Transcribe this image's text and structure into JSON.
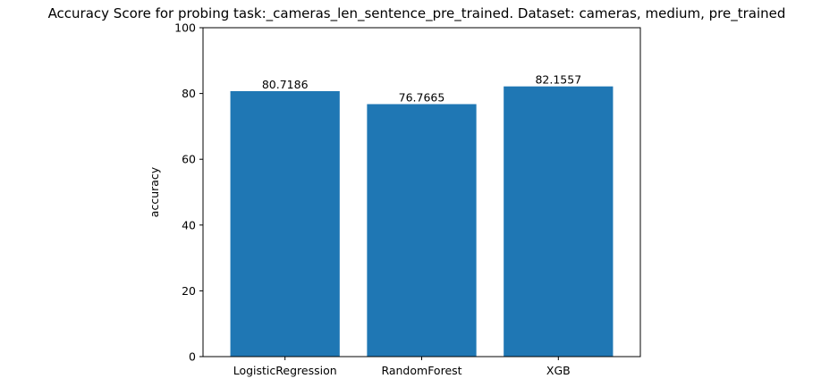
{
  "chart_data": {
    "type": "bar",
    "title": "Accuracy Score for probing task:_cameras_len_sentence_pre_trained. Dataset: cameras, medium, pre_trained",
    "xlabel": "",
    "ylabel": "accuracy",
    "categories": [
      "LogisticRegression",
      "RandomForest",
      "XGB"
    ],
    "values": [
      80.7186,
      76.7665,
      82.1557
    ],
    "data_labels": [
      "80.7186",
      "76.7665",
      "82.1557"
    ],
    "ylim": [
      0,
      100
    ],
    "yticks": [
      0,
      20,
      40,
      60,
      80,
      100
    ],
    "grid": false,
    "legend": "none",
    "bar_color": "#1f77b4"
  }
}
